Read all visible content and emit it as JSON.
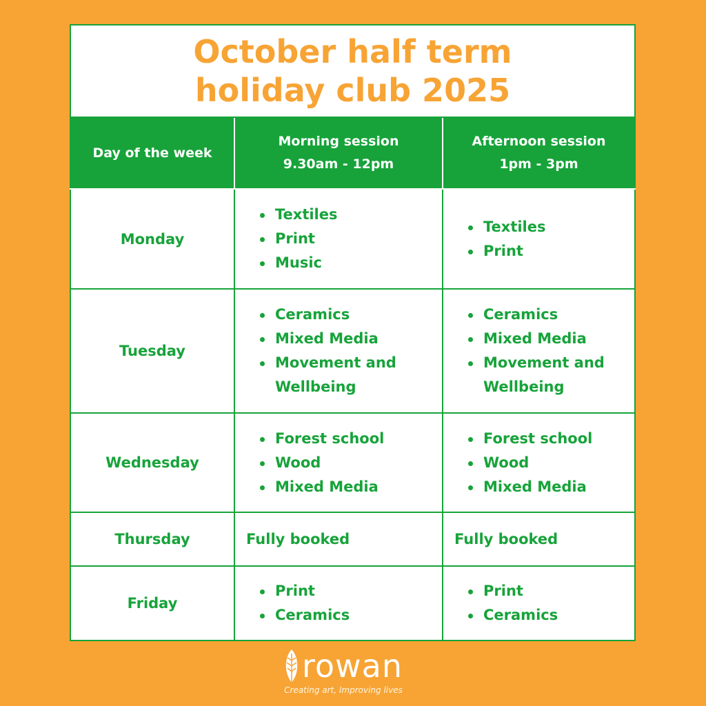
{
  "title": {
    "line1": "October half term",
    "line2": "holiday club 2025"
  },
  "headers": {
    "day": "Day of the week",
    "morning": "Morning session",
    "morning_time": "9.30am - 12pm",
    "afternoon": "Afternoon session",
    "afternoon_time": "1pm - 3pm"
  },
  "rows": [
    {
      "day": "Monday",
      "morning": [
        "Textiles",
        "Print",
        "Music"
      ],
      "afternoon": [
        "Textiles",
        "Print"
      ]
    },
    {
      "day": "Tuesday",
      "morning": [
        "Ceramics",
        "Mixed Media",
        "Movement and Wellbeing"
      ],
      "afternoon": [
        "Ceramics",
        "Mixed Media",
        "Movement and Wellbeing"
      ]
    },
    {
      "day": "Wednesday",
      "morning": [
        "Forest school",
        "Wood",
        "Mixed Media"
      ],
      "afternoon": [
        "Forest school",
        "Wood",
        "Mixed Media"
      ]
    },
    {
      "day": "Thursday",
      "morning_status": "Fully booked",
      "afternoon_status": "Fully booked"
    },
    {
      "day": "Friday",
      "morning": [
        "Print",
        "Ceramics"
      ],
      "afternoon": [
        "Print",
        "Ceramics"
      ]
    }
  ],
  "logo": {
    "name": "rowan",
    "tagline": "Creating art, Improving lives"
  },
  "colors": {
    "background": "#f7a435",
    "green": "#17a33a",
    "booked": "#e3202e"
  }
}
